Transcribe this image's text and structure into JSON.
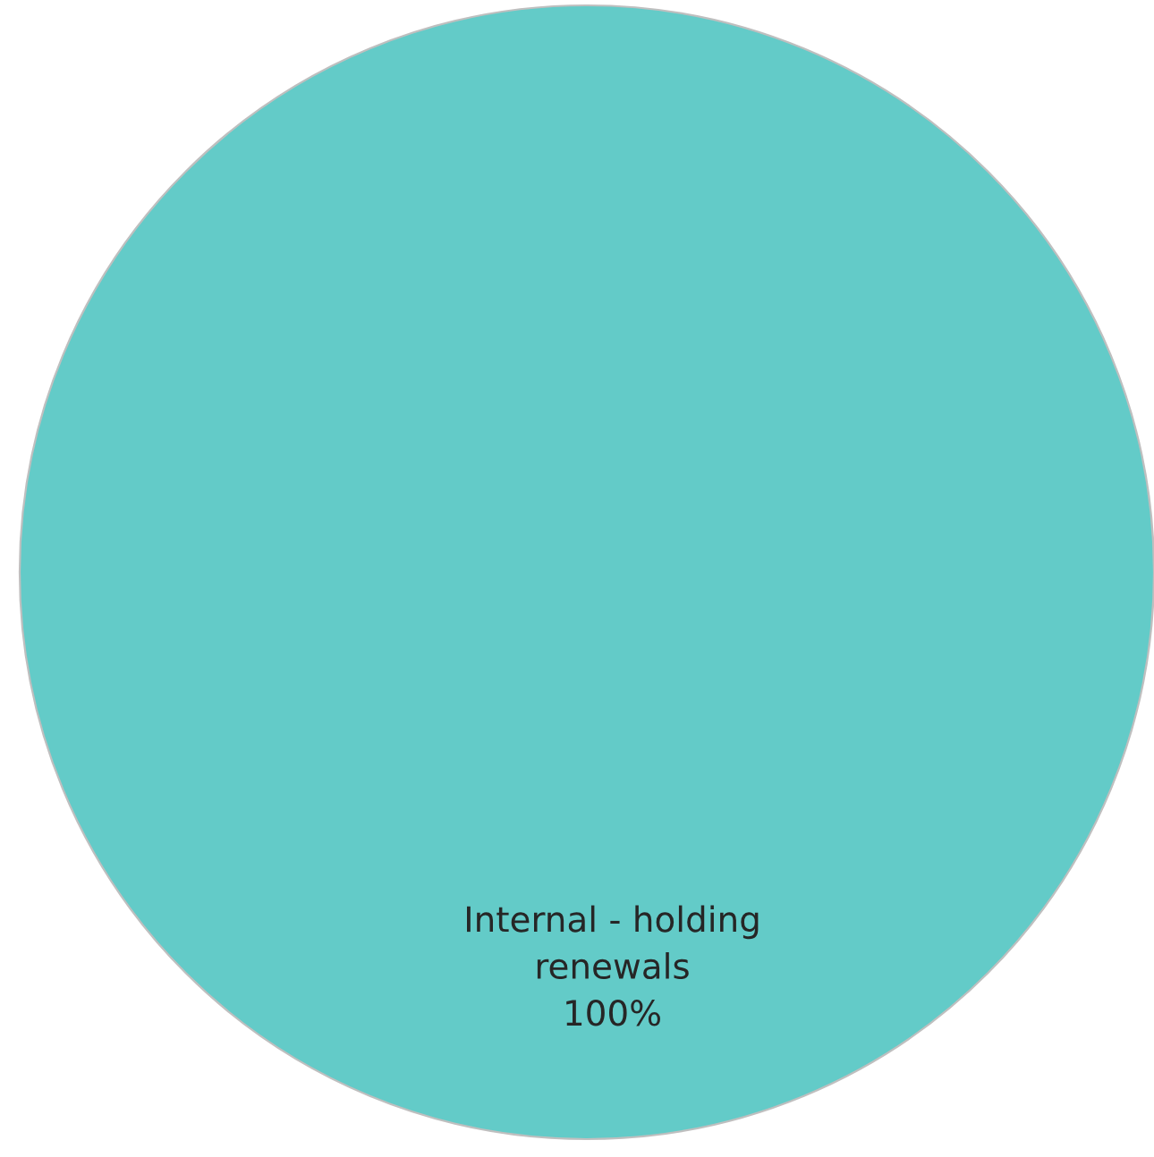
{
  "chart_data": {
    "type": "pie",
    "categories": [
      "Internal - holding renewals"
    ],
    "values": [
      100
    ],
    "value_labels": [
      "100%"
    ],
    "colors": [
      "#63cbc8"
    ],
    "legend": false
  }
}
